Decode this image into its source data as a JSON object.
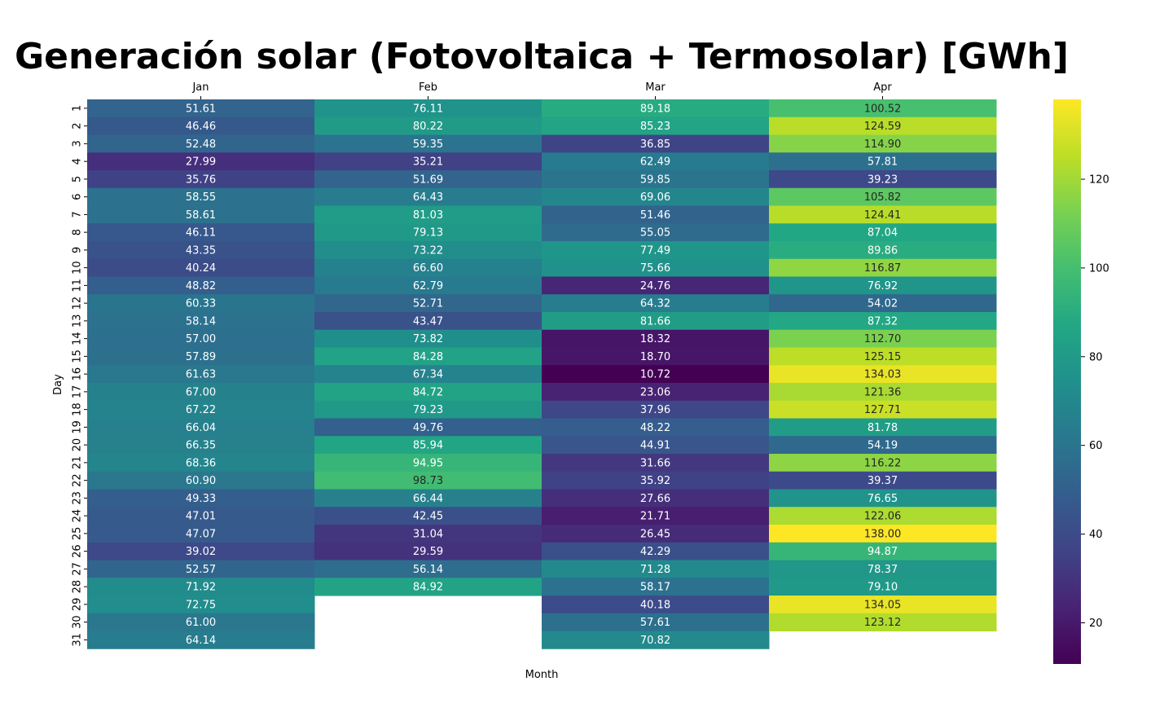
{
  "chart_data": {
    "type": "heatmap",
    "title": "Generación solar (Fotovoltaica + Termosolar) [GWh]",
    "xlabel": "Month",
    "ylabel": "Day",
    "columns": [
      "Jan",
      "Feb",
      "Mar",
      "Apr"
    ],
    "rows": [
      "1",
      "2",
      "3",
      "4",
      "5",
      "6",
      "7",
      "8",
      "9",
      "10",
      "11",
      "12",
      "13",
      "14",
      "15",
      "16",
      "17",
      "18",
      "19",
      "20",
      "21",
      "22",
      "23",
      "24",
      "25",
      "26",
      "27",
      "28",
      "29",
      "30",
      "31"
    ],
    "values": {
      "Jan": [
        51.61,
        46.46,
        52.48,
        27.99,
        35.76,
        58.55,
        58.61,
        46.11,
        43.35,
        40.24,
        48.82,
        60.33,
        58.14,
        57.0,
        57.89,
        61.63,
        67.0,
        67.22,
        66.04,
        66.35,
        68.36,
        60.9,
        49.33,
        47.01,
        47.07,
        39.02,
        52.57,
        71.92,
        72.75,
        61.0,
        64.14
      ],
      "Feb": [
        76.11,
        80.22,
        59.35,
        35.21,
        51.69,
        64.43,
        81.03,
        79.13,
        73.22,
        66.6,
        62.79,
        52.71,
        43.47,
        73.82,
        84.28,
        67.34,
        84.72,
        79.23,
        49.76,
        85.94,
        94.95,
        98.73,
        66.44,
        42.45,
        31.04,
        29.59,
        56.14,
        84.92,
        null,
        null,
        null
      ],
      "Mar": [
        89.18,
        85.23,
        36.85,
        62.49,
        59.85,
        69.06,
        51.46,
        55.05,
        77.49,
        75.66,
        24.76,
        64.32,
        81.66,
        18.32,
        18.7,
        10.72,
        23.06,
        37.96,
        48.22,
        44.91,
        31.66,
        35.92,
        27.66,
        21.71,
        26.45,
        42.29,
        71.28,
        58.17,
        40.18,
        57.61,
        70.82
      ],
      "Apr": [
        100.52,
        124.59,
        114.9,
        57.81,
        39.23,
        105.82,
        124.41,
        87.04,
        89.86,
        116.87,
        76.92,
        54.02,
        87.32,
        112.7,
        125.15,
        134.03,
        121.36,
        127.71,
        81.78,
        54.19,
        116.22,
        39.37,
        76.65,
        122.06,
        138.0,
        94.87,
        78.37,
        79.1,
        134.05,
        123.12,
        null
      ]
    },
    "colormap": "viridis",
    "vmin": 10.72,
    "vmax": 138.0,
    "colorbar_ticks": [
      20,
      40,
      60,
      80,
      100,
      120
    ],
    "x_ticks_position": "top",
    "grid": false
  }
}
